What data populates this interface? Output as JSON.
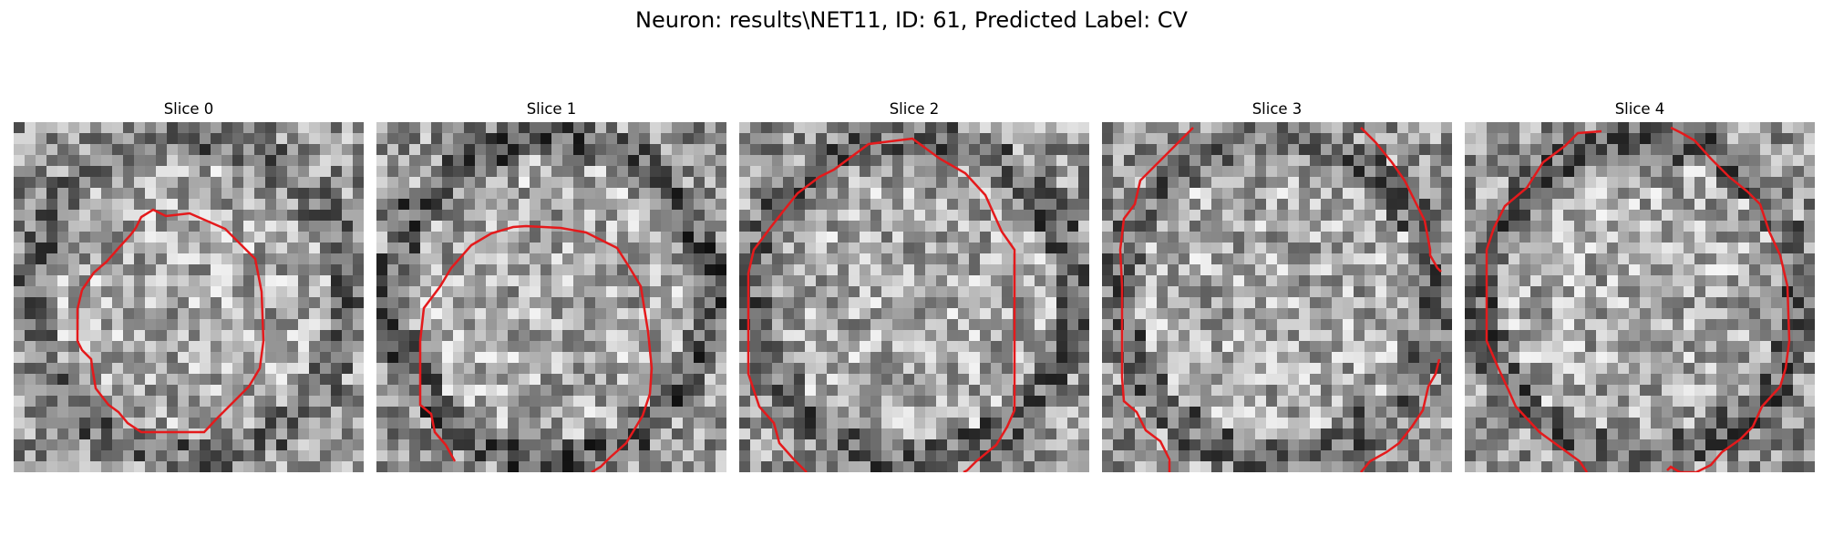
{
  "figure": {
    "title": "Neuron: results\\NET11, ID: 61, Predicted Label: CV"
  },
  "panels": [
    {
      "title": "Slice 0",
      "seed": 11,
      "darkness": 0.0
    },
    {
      "title": "Slice 1",
      "seed": 23,
      "darkness": 0.25
    },
    {
      "title": "Slice 2",
      "seed": 37,
      "darkness": 0.1
    },
    {
      "title": "Slice 3",
      "seed": 41,
      "darkness": 0.05
    },
    {
      "title": "Slice 4",
      "seed": 53,
      "darkness": 0.12
    }
  ],
  "contour_color": "#e41a1c"
}
